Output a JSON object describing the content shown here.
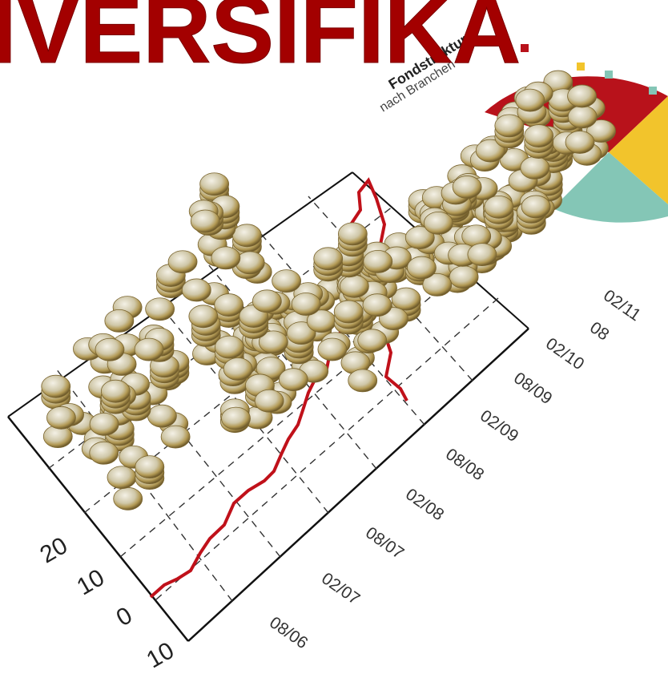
{
  "title": "IVERSIFIKA",
  "pie_label": {
    "title": "Fondstruktur",
    "subtitle": "nach Branchen"
  },
  "y_axis_labels": [
    "0",
    "10",
    "20",
    "10"
  ],
  "x_axis_labels": [
    "08/06",
    "02/07",
    "08/07",
    "02/08",
    "08/08",
    "02/09",
    "08/09",
    "02/10",
    "08",
    "02/11"
  ]
}
